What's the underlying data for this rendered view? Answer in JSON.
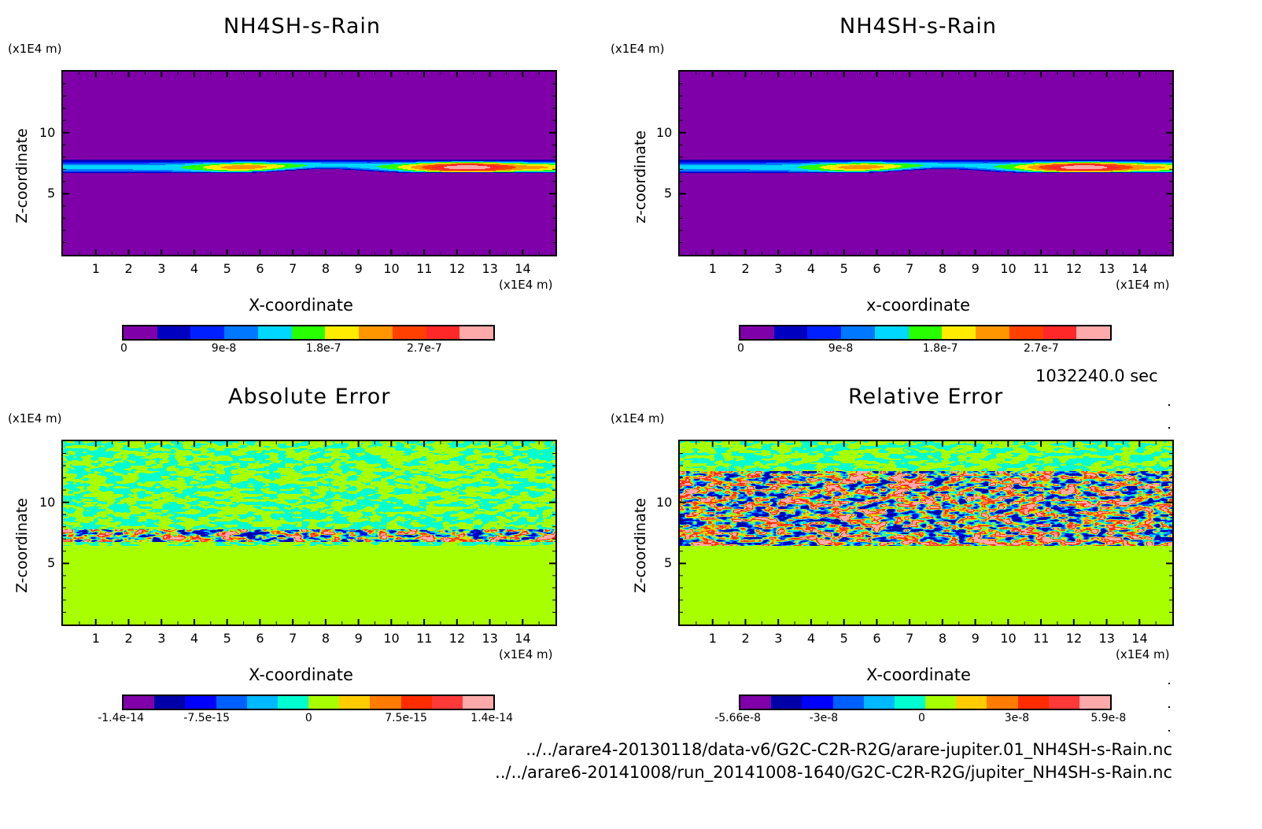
{
  "figure": {
    "timestamp": "1032240.0 sec",
    "file_paths": [
      "../../arare4-20130118/data-v6/G2C-C2R-R2G/arare-jupiter.01_NH4SH-s-Rain.nc",
      "../../arare6-20141008/run_20141008-1640/G2C-C2R-R2G/jupiter_NH4SH-s-Rain.nc"
    ]
  },
  "chart_data": [
    {
      "id": "panel-1",
      "type": "heatmap",
      "title": "NH4SH-s-Rain",
      "xlabel": "X-coordinate",
      "ylabel": "Z-coordinate",
      "x_unit": "(x1E4 m)",
      "y_unit": "(x1E4 m)",
      "xlim": [
        0,
        15
      ],
      "ylim": [
        0,
        15
      ],
      "x_ticks": [
        "1",
        "2",
        "3",
        "4",
        "5",
        "6",
        "7",
        "8",
        "9",
        "10",
        "11",
        "12",
        "13",
        "14"
      ],
      "y_ticks": [
        "5",
        "10"
      ],
      "field": "cloud_layer",
      "layer_z_range": [
        6.8,
        7.8
      ],
      "colorbar": {
        "colors": [
          "#7f00a8",
          "#0000c0",
          "#0020ff",
          "#0078ff",
          "#00d8ff",
          "#28ff00",
          "#ffec00",
          "#ff9600",
          "#ff4000",
          "#ff2828",
          "#ffaaaa"
        ],
        "tick_labels": [
          "0",
          "9e-8",
          "1.8e-7",
          "2.7e-7"
        ],
        "range": [
          0,
          3.3e-07
        ]
      }
    },
    {
      "id": "panel-2",
      "type": "heatmap",
      "title": "NH4SH-s-Rain",
      "xlabel": "x-coordinate",
      "ylabel": "z-coordinate",
      "x_unit": "(x1E4 m)",
      "y_unit": "(x1E4 m)",
      "xlim": [
        0,
        15
      ],
      "ylim": [
        0,
        15
      ],
      "x_ticks": [
        "1",
        "2",
        "3",
        "4",
        "5",
        "6",
        "7",
        "8",
        "9",
        "10",
        "11",
        "12",
        "13",
        "14"
      ],
      "y_ticks": [
        "5",
        "10"
      ],
      "field": "cloud_layer",
      "layer_z_range": [
        6.8,
        7.8
      ],
      "colorbar": {
        "colors": [
          "#7f00a8",
          "#0000c0",
          "#0020ff",
          "#0078ff",
          "#00d8ff",
          "#28ff00",
          "#ffec00",
          "#ff9600",
          "#ff4000",
          "#ff2828",
          "#ffaaaa"
        ],
        "tick_labels": [
          "0",
          "9e-8",
          "1.8e-7",
          "2.7e-7"
        ],
        "range": [
          0,
          3.3e-07
        ]
      }
    },
    {
      "id": "panel-3",
      "type": "heatmap",
      "title": "Absolute Error",
      "xlabel": "X-coordinate",
      "ylabel": "Z-coordinate",
      "x_unit": "(x1E4 m)",
      "y_unit": "(x1E4 m)",
      "xlim": [
        0,
        15
      ],
      "ylim": [
        0,
        15
      ],
      "x_ticks": [
        "1",
        "2",
        "3",
        "4",
        "5",
        "6",
        "7",
        "8",
        "9",
        "10",
        "11",
        "12",
        "13",
        "14"
      ],
      "y_ticks": [
        "5",
        "10"
      ],
      "field": "abs_error",
      "noise_z_range": [
        6.5,
        15
      ],
      "strong_band_z_range": [
        6.8,
        7.8
      ],
      "colorbar": {
        "colors": [
          "#7f00a8",
          "#0000a8",
          "#0000ff",
          "#0060ff",
          "#00b8ff",
          "#00ffd0",
          "#a8ff00",
          "#ffcc00",
          "#ff7c00",
          "#ff2c00",
          "#ff3838",
          "#ffaaaa"
        ],
        "tick_labels": [
          "-1.4e-14",
          "-7.5e-15",
          "0",
          "7.5e-15",
          "1.4e-14"
        ],
        "range": [
          -1.4e-14,
          1.4e-14
        ]
      }
    },
    {
      "id": "panel-4",
      "type": "heatmap",
      "title": "Relative Error",
      "xlabel": "X-coordinate",
      "ylabel": "Z-coordinate",
      "x_unit": "(x1E4 m)",
      "y_unit": "(x1E4 m)",
      "xlim": [
        0,
        15
      ],
      "ylim": [
        0,
        15
      ],
      "x_ticks": [
        "1",
        "2",
        "3",
        "4",
        "5",
        "6",
        "7",
        "8",
        "9",
        "10",
        "11",
        "12",
        "13",
        "14"
      ],
      "y_ticks": [
        "5",
        "10"
      ],
      "field": "rel_error",
      "noise_z_range": [
        6.5,
        15
      ],
      "strong_band_z_range": [
        6.5,
        12.6
      ],
      "colorbar": {
        "colors": [
          "#7f00a8",
          "#0000a8",
          "#0000ff",
          "#0060ff",
          "#00b8ff",
          "#00ffd0",
          "#a8ff00",
          "#ffcc00",
          "#ff7c00",
          "#ff2c00",
          "#ff3838",
          "#ffaaaa"
        ],
        "tick_labels": [
          "-5.66e-8",
          "-3e-8",
          "0",
          "3e-8",
          "5.9e-8"
        ],
        "range": [
          -5.66e-08,
          5.9e-08
        ]
      }
    }
  ]
}
